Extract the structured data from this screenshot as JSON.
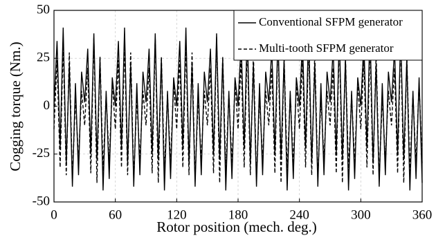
{
  "chart_data": {
    "type": "line",
    "y_label": "Cogging torque (Nm.)",
    "x_label": "Rotor position (mech. deg.)",
    "x": [
      0,
      3,
      6,
      9,
      12,
      15,
      18,
      21,
      24,
      27,
      30,
      33,
      36,
      39,
      42,
      45,
      48,
      51,
      54,
      57,
      60,
      63,
      66,
      69,
      72,
      75,
      78,
      81,
      84,
      87,
      90,
      93,
      96,
      99,
      102,
      105,
      108,
      111,
      114,
      117,
      120,
      123,
      126,
      129,
      132,
      135,
      138,
      141,
      144,
      147,
      150,
      153,
      156,
      159,
      162,
      165,
      168,
      171,
      174,
      177,
      180,
      183,
      186,
      189,
      192,
      195,
      198,
      201,
      204,
      207,
      210,
      213,
      216,
      219,
      222,
      225,
      228,
      231,
      234,
      237,
      240,
      243,
      246,
      249,
      252,
      255,
      258,
      261,
      264,
      267,
      270,
      273,
      276,
      279,
      282,
      285,
      288,
      291,
      294,
      297,
      300,
      303,
      306,
      309,
      312,
      315,
      318,
      321,
      324,
      327,
      330,
      333,
      336,
      339,
      342,
      345,
      348,
      351,
      354,
      357,
      360
    ],
    "series": [
      {
        "name": "Conventional SFPM generator",
        "color": "#000000",
        "dashed": false,
        "values": [
          0,
          34,
          -22,
          41,
          -30,
          22,
          -42,
          12,
          -36,
          18,
          2,
          30,
          -25,
          38,
          -28,
          25,
          -44,
          8,
          -38,
          15,
          0,
          34,
          -22,
          41,
          -30,
          22,
          -42,
          12,
          -36,
          18,
          2,
          30,
          -25,
          38,
          -28,
          25,
          -44,
          8,
          -38,
          15,
          0,
          34,
          -22,
          41,
          -30,
          22,
          -42,
          12,
          -36,
          18,
          2,
          30,
          -25,
          38,
          -28,
          25,
          -44,
          8,
          -38,
          15,
          0,
          34,
          -22,
          41,
          -30,
          22,
          -42,
          12,
          -36,
          18,
          2,
          30,
          -25,
          38,
          -28,
          25,
          -44,
          8,
          -38,
          15,
          0,
          34,
          -22,
          41,
          -30,
          22,
          -42,
          12,
          -36,
          18,
          2,
          30,
          -25,
          38,
          -28,
          25,
          -44,
          8,
          -38,
          15,
          0,
          34,
          -22,
          41,
          -30,
          22,
          -42,
          12,
          -36,
          18,
          2,
          30,
          -25,
          38,
          -28,
          25,
          -44,
          8,
          -38,
          15,
          -40
        ]
      },
      {
        "name": "Multi-tooth SFPM generator",
        "color": "#000000",
        "dashed": true,
        "values": [
          -12,
          24,
          -32,
          33,
          -36,
          28,
          -38,
          4,
          -28,
          8,
          -10,
          20,
          -35,
          36,
          -40,
          26,
          -34,
          6,
          -30,
          12,
          -12,
          24,
          -32,
          33,
          -36,
          28,
          -38,
          4,
          -28,
          8,
          -10,
          20,
          -35,
          36,
          -40,
          26,
          -34,
          6,
          -30,
          12,
          -12,
          24,
          -32,
          33,
          -36,
          28,
          -38,
          4,
          -28,
          8,
          -10,
          20,
          -35,
          36,
          -40,
          26,
          -34,
          6,
          -30,
          12,
          -12,
          24,
          -32,
          33,
          -36,
          28,
          -38,
          4,
          -28,
          8,
          -10,
          20,
          -35,
          36,
          -40,
          26,
          -34,
          6,
          -30,
          12,
          -12,
          24,
          -32,
          33,
          -36,
          28,
          -38,
          4,
          -28,
          8,
          -10,
          20,
          -35,
          36,
          -40,
          26,
          -34,
          6,
          -30,
          12,
          -12,
          24,
          -32,
          33,
          -36,
          28,
          -38,
          4,
          -28,
          8,
          -10,
          20,
          -35,
          36,
          -40,
          26,
          -34,
          6,
          -30,
          12,
          -30
        ]
      }
    ],
    "xlim": [
      0,
      360
    ],
    "xticks": [
      0,
      60,
      120,
      180,
      240,
      300,
      360
    ],
    "ylim": [
      -50,
      50
    ],
    "yticks": [
      50,
      25,
      0,
      -25,
      -50
    ],
    "grid": true,
    "legend": "top-right"
  }
}
